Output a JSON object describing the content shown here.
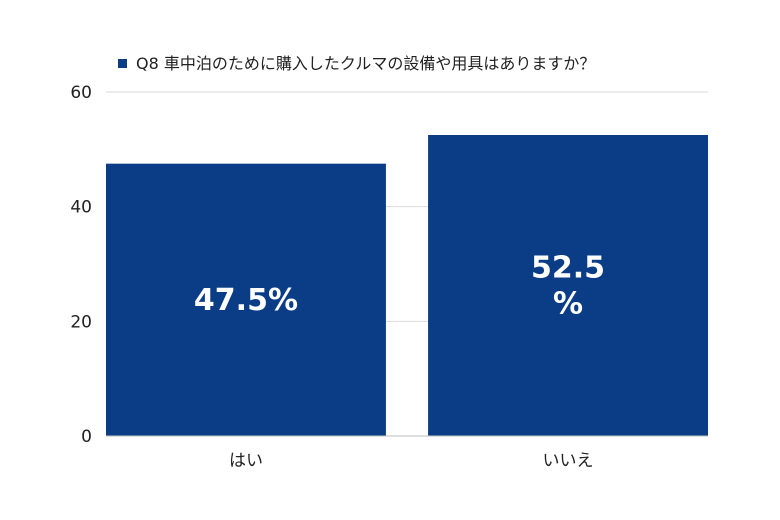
{
  "chart_data": {
    "type": "bar",
    "title": "",
    "xlabel": "",
    "ylabel": "",
    "categories": [
      "はい",
      "いいえ"
    ],
    "series": [
      {
        "name": "Q8 車中泊のために購入したクルマの設備や用具はありますか？",
        "values": [
          47.5,
          52.5
        ]
      }
    ],
    "data_labels": [
      [
        "47.5%"
      ],
      [
        "52.5",
        "%"
      ]
    ],
    "ylim": [
      0,
      60
    ],
    "yticks": [
      0,
      20,
      40,
      60
    ],
    "grid": true,
    "legend": "top",
    "colors": {
      "bar": "#0b3d87",
      "grid": "#d9d9d9",
      "axis": "#bfbfbf",
      "label": "#ffffff"
    }
  }
}
